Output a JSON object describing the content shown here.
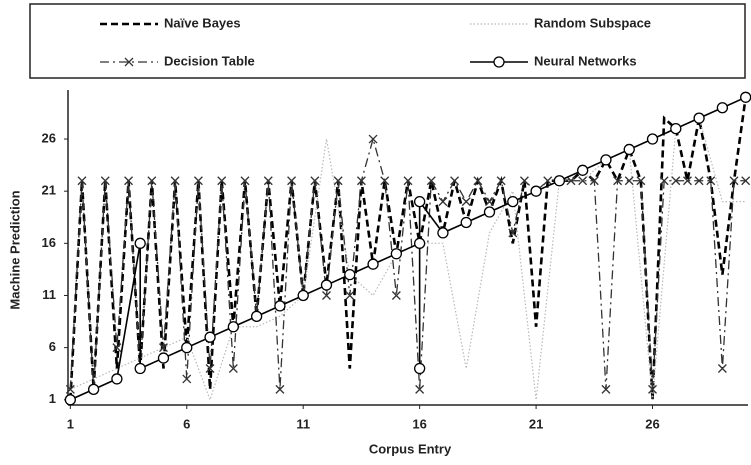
{
  "chart_data": {
    "type": "line",
    "xlabel": "Corpus Entry",
    "ylabel": "Machine Prediction",
    "xlim": [
      0.9,
      30.1
    ],
    "ylim": [
      0.5,
      30.7
    ],
    "xticks": [
      1,
      6,
      11,
      16,
      21,
      26
    ],
    "yticks": [
      1,
      6,
      11,
      16,
      21,
      26
    ],
    "grid": false,
    "legend": "top",
    "series": [
      {
        "name": "Naïve Bayes",
        "color": "#000000",
        "style": "dashed",
        "marker": "none",
        "x": [
          1,
          1.5,
          2,
          2.5,
          3,
          3.5,
          4,
          4.5,
          5,
          5.5,
          6,
          6.5,
          7,
          7.5,
          8,
          8.5,
          9,
          9.5,
          10,
          10.5,
          11,
          11.5,
          12,
          12.5,
          13,
          13.5,
          14,
          14.5,
          15,
          15.5,
          16,
          16.5,
          17,
          17.5,
          18,
          18.5,
          19,
          19.5,
          20,
          20.5,
          21,
          21.5,
          22,
          22.5,
          23,
          23.5,
          24,
          24.5,
          25,
          25.5,
          26,
          26.5,
          27,
          27.5,
          28,
          28.5,
          29,
          29.5,
          30
        ],
        "values": [
          1,
          22,
          2,
          22,
          4,
          22,
          4,
          22,
          4,
          22,
          6,
          22,
          2,
          22,
          8,
          22,
          9,
          22,
          10,
          22,
          11,
          22,
          12,
          22,
          4,
          22,
          14,
          22,
          15,
          22,
          16,
          22,
          17,
          22,
          18,
          22,
          19,
          22,
          16,
          22,
          8,
          22,
          22,
          22,
          23,
          22,
          24,
          22,
          25,
          22,
          1,
          28,
          27,
          22,
          28,
          22,
          13,
          22,
          30
        ]
      },
      {
        "name": "Random Subspace",
        "color": "#b8b8b8",
        "style": "dotted",
        "marker": "none",
        "x": [
          1,
          2,
          3,
          4,
          5,
          6,
          7,
          8,
          9,
          10,
          11,
          12,
          13,
          14,
          15,
          16,
          17,
          18,
          19,
          20,
          21,
          22,
          23,
          24,
          25,
          26,
          27,
          28,
          29,
          30
        ],
        "values": [
          2,
          3,
          4,
          5,
          6,
          7,
          1,
          8,
          8,
          9,
          11,
          26,
          13,
          11,
          15,
          16,
          16,
          4,
          17,
          21,
          1,
          22,
          22,
          24,
          25,
          1,
          27,
          28,
          20,
          20
        ]
      },
      {
        "name": "Decision Table",
        "color": "#333333",
        "style": "dashdot",
        "marker": "x",
        "x": [
          1,
          1.5,
          2,
          2.5,
          3,
          3.5,
          4,
          4.5,
          5,
          5.5,
          6,
          6.5,
          7,
          7.5,
          8,
          8.5,
          9,
          9.5,
          10,
          10.5,
          11,
          11.5,
          12,
          12.5,
          13,
          13.5,
          14,
          14.5,
          15,
          15.5,
          16,
          16.5,
          17,
          17.5,
          18,
          18.5,
          19,
          19.5,
          20,
          20.5,
          21,
          21.5,
          22,
          22.5,
          23,
          23.5,
          24,
          24.5,
          25,
          25.5,
          26,
          26.5,
          27,
          27.5,
          28,
          28.5,
          29,
          29.5,
          30
        ],
        "values": [
          2,
          22,
          2,
          22,
          6,
          22,
          4,
          22,
          6,
          22,
          3,
          22,
          4,
          22,
          4,
          22,
          9,
          22,
          2,
          22,
          11,
          22,
          11,
          22,
          11,
          22,
          26,
          22,
          11,
          22,
          2,
          22,
          20,
          22,
          20,
          22,
          20,
          22,
          17,
          22,
          21,
          22,
          22,
          22,
          22,
          22,
          2,
          22,
          22,
          22,
          2,
          22,
          22,
          22,
          22,
          22,
          4,
          22,
          22
        ]
      },
      {
        "name": "Neural Networks",
        "color": "#000000",
        "style": "solid",
        "marker": "circle",
        "x": [
          1,
          2,
          3,
          4,
          4,
          5,
          6,
          7,
          8,
          9,
          10,
          11,
          12,
          13,
          14,
          15,
          16,
          16,
          16,
          17,
          18,
          19,
          20,
          21,
          22,
          23,
          24,
          25,
          26,
          27,
          28,
          29,
          30
        ],
        "values": [
          1,
          2,
          3,
          16,
          4,
          5,
          6,
          7,
          8,
          9,
          10,
          11,
          12,
          13,
          14,
          15,
          16,
          4,
          20,
          17,
          18,
          19,
          20,
          21,
          22,
          23,
          24,
          25,
          26,
          27,
          28,
          29,
          30
        ]
      }
    ]
  }
}
